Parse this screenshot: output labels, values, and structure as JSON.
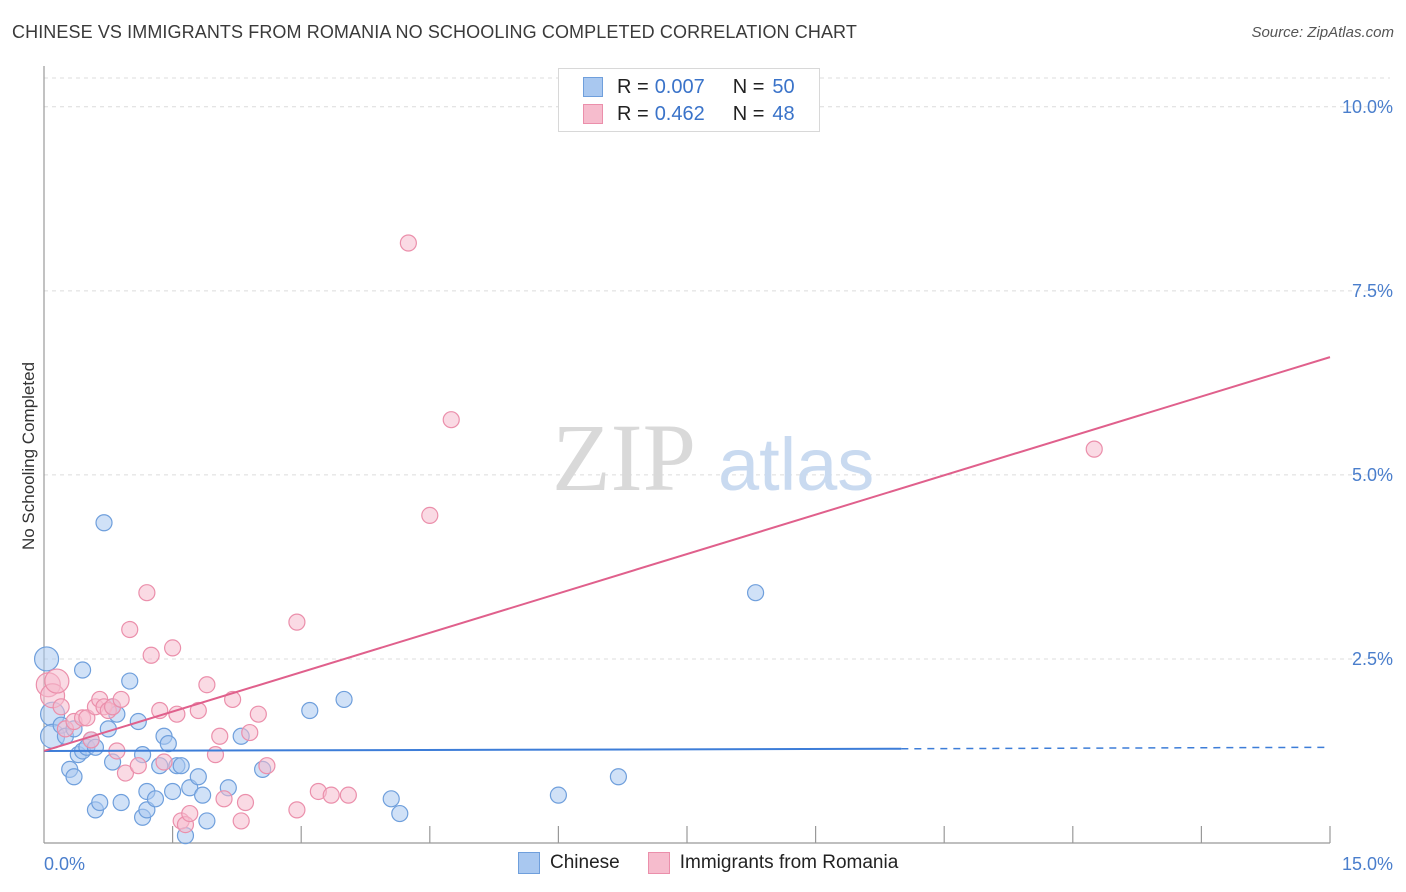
{
  "header": {
    "title": "CHINESE VS IMMIGRANTS FROM ROMANIA NO SCHOOLING COMPLETED CORRELATION CHART",
    "source": "Source: ZipAtlas.com"
  },
  "legend": {
    "rows": [
      {
        "r_label": "R =",
        "r_value": "0.007",
        "n_label": "N =",
        "n_value": "50"
      },
      {
        "r_label": "R =",
        "r_value": "0.462",
        "n_label": "N =",
        "n_value": "48"
      }
    ]
  },
  "watermark": {
    "zip": "ZIP",
    "atlas": "atlas"
  },
  "colors": {
    "chinese_fill": "#a9c8f0",
    "chinese_stroke": "#6f9fdc",
    "chinese_line": "#3d7dd8",
    "romania_fill": "#f6bccd",
    "romania_stroke": "#eb8fab",
    "romania_line": "#e0608c",
    "grid": "#dcdcdc",
    "axis_text": "#4a7ecc"
  },
  "chart_data": {
    "type": "scatter",
    "title": "CHINESE VS IMMIGRANTS FROM ROMANIA NO SCHOOLING COMPLETED CORRELATION CHART",
    "xlabel": "",
    "ylabel": "No Schooling Completed",
    "xlim": [
      0,
      15
    ],
    "ylim": [
      0,
      10.5
    ],
    "x_tick_labels": [
      "0.0%",
      "15.0%"
    ],
    "y_ticks": [
      2.5,
      5.0,
      7.5,
      10.0
    ],
    "y_tick_labels": [
      "2.5%",
      "5.0%",
      "7.5%",
      "10.0%"
    ],
    "x_minor_ticks": [
      1.5,
      3.0,
      4.5,
      6.0,
      7.5,
      9.0,
      10.5,
      12.0,
      13.5,
      15.0
    ],
    "series": [
      {
        "name": "Chinese",
        "points": [
          [
            0.03,
            2.5
          ],
          [
            0.1,
            1.75
          ],
          [
            0.1,
            1.45
          ],
          [
            0.2,
            1.6
          ],
          [
            0.25,
            1.45
          ],
          [
            0.3,
            1.0
          ],
          [
            0.35,
            0.9
          ],
          [
            0.35,
            1.55
          ],
          [
            0.4,
            1.2
          ],
          [
            0.45,
            1.25
          ],
          [
            0.5,
            1.3
          ],
          [
            0.45,
            2.35
          ],
          [
            0.55,
            1.4
          ],
          [
            0.6,
            1.3
          ],
          [
            0.6,
            0.45
          ],
          [
            0.65,
            0.55
          ],
          [
            0.7,
            4.35
          ],
          [
            0.75,
            1.55
          ],
          [
            0.8,
            1.85
          ],
          [
            0.8,
            1.1
          ],
          [
            0.85,
            1.75
          ],
          [
            0.9,
            0.55
          ],
          [
            1.0,
            2.2
          ],
          [
            1.1,
            1.65
          ],
          [
            1.15,
            0.35
          ],
          [
            1.2,
            0.7
          ],
          [
            1.2,
            0.45
          ],
          [
            1.3,
            0.6
          ],
          [
            1.35,
            1.05
          ],
          [
            1.4,
            1.45
          ],
          [
            1.45,
            1.35
          ],
          [
            1.5,
            0.7
          ],
          [
            1.55,
            1.05
          ],
          [
            1.6,
            1.05
          ],
          [
            1.7,
            0.75
          ],
          [
            1.8,
            0.9
          ],
          [
            1.85,
            0.65
          ],
          [
            1.9,
            0.3
          ],
          [
            2.15,
            0.75
          ],
          [
            2.3,
            1.45
          ],
          [
            2.55,
            1.0
          ],
          [
            3.1,
            1.8
          ],
          [
            3.5,
            1.95
          ],
          [
            4.05,
            0.6
          ],
          [
            4.15,
            0.4
          ],
          [
            6.0,
            0.65
          ],
          [
            6.7,
            0.9
          ],
          [
            8.3,
            3.4
          ],
          [
            1.65,
            0.1
          ],
          [
            1.15,
            1.2
          ]
        ],
        "trend": {
          "x0": 0.0,
          "y0": 1.25,
          "x1": 10.0,
          "y1": 1.28,
          "dashed_to_x": 15.0,
          "dashed_to_y": 1.3
        }
      },
      {
        "name": "Immigrants from Romania",
        "points": [
          [
            0.05,
            2.15
          ],
          [
            0.1,
            2.0
          ],
          [
            0.15,
            2.2
          ],
          [
            0.2,
            1.85
          ],
          [
            0.25,
            1.55
          ],
          [
            0.35,
            1.65
          ],
          [
            0.45,
            1.7
          ],
          [
            0.5,
            1.7
          ],
          [
            0.55,
            1.4
          ],
          [
            0.6,
            1.85
          ],
          [
            0.65,
            1.95
          ],
          [
            0.7,
            1.85
          ],
          [
            0.75,
            1.8
          ],
          [
            0.8,
            1.85
          ],
          [
            0.85,
            1.25
          ],
          [
            0.9,
            1.95
          ],
          [
            0.95,
            0.95
          ],
          [
            1.0,
            2.9
          ],
          [
            1.1,
            1.05
          ],
          [
            1.2,
            3.4
          ],
          [
            1.25,
            2.55
          ],
          [
            1.35,
            1.8
          ],
          [
            1.4,
            1.1
          ],
          [
            1.5,
            2.65
          ],
          [
            1.55,
            1.75
          ],
          [
            1.6,
            0.3
          ],
          [
            1.65,
            0.25
          ],
          [
            1.7,
            0.4
          ],
          [
            1.8,
            1.8
          ],
          [
            1.9,
            2.15
          ],
          [
            2.0,
            1.2
          ],
          [
            2.05,
            1.45
          ],
          [
            2.1,
            0.6
          ],
          [
            2.2,
            1.95
          ],
          [
            2.3,
            0.3
          ],
          [
            2.35,
            0.55
          ],
          [
            2.4,
            1.5
          ],
          [
            2.5,
            1.75
          ],
          [
            2.6,
            1.05
          ],
          [
            2.95,
            0.45
          ],
          [
            2.95,
            3.0
          ],
          [
            3.2,
            0.7
          ],
          [
            3.35,
            0.65
          ],
          [
            3.55,
            0.65
          ],
          [
            4.25,
            8.15
          ],
          [
            4.5,
            4.45
          ],
          [
            4.75,
            5.75
          ],
          [
            12.25,
            5.35
          ]
        ],
        "trend": {
          "x0": 0.0,
          "y0": 1.25,
          "x1": 15.0,
          "y1": 6.6
        }
      }
    ]
  },
  "bottom_legend": {
    "items": [
      "Chinese",
      "Immigrants from Romania"
    ]
  }
}
